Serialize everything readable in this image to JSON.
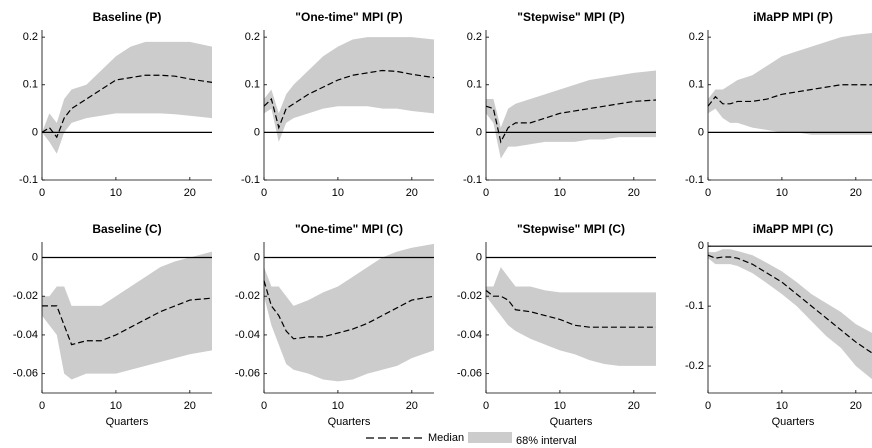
{
  "chart_data": [
    {
      "type": "line",
      "title": "Baseline (P)",
      "x": [
        0,
        1,
        2,
        3,
        4,
        6,
        8,
        10,
        12,
        14,
        16,
        18,
        20,
        23
      ],
      "xlim": [
        0,
        23
      ],
      "xticks": [
        0,
        10,
        20
      ],
      "ylim": [
        -0.1,
        0.215
      ],
      "yticks": [
        -0.1,
        0,
        0.1,
        0.2
      ],
      "hline": 0,
      "series": [
        {
          "color": "#000000",
          "values": [
            0,
            0.01,
            -0.01,
            0.03,
            0.05,
            0.07,
            0.09,
            0.11,
            0.115,
            0.12,
            0.12,
            0.118,
            0.112,
            0.105
          ]
        }
      ],
      "band": {
        "color": "#cccccc",
        "lower": [
          0,
          -0.02,
          -0.045,
          0,
          0.02,
          0.03,
          0.035,
          0.04,
          0.04,
          0.04,
          0.04,
          0.038,
          0.035,
          0.03
        ],
        "upper": [
          0,
          0.04,
          0.02,
          0.07,
          0.09,
          0.1,
          0.13,
          0.16,
          0.18,
          0.19,
          0.19,
          0.19,
          0.19,
          0.18
        ]
      }
    },
    {
      "type": "line",
      "title": "\"One-time\" MPI (P)",
      "x": [
        0,
        1,
        2,
        3,
        4,
        6,
        8,
        10,
        12,
        14,
        16,
        18,
        20,
        23
      ],
      "xlim": [
        0,
        23
      ],
      "xticks": [
        0,
        10,
        20
      ],
      "ylim": [
        -0.1,
        0.215
      ],
      "yticks": [
        -0.1,
        0,
        0.1,
        0.2
      ],
      "hline": 0,
      "series": [
        {
          "color": "#000000",
          "values": [
            0.055,
            0.07,
            0.01,
            0.05,
            0.06,
            0.08,
            0.095,
            0.11,
            0.12,
            0.125,
            0.13,
            0.128,
            0.122,
            0.115
          ]
        }
      ],
      "band": {
        "color": "#cccccc",
        "lower": [
          0.04,
          0.05,
          -0.02,
          0.02,
          0.03,
          0.04,
          0.05,
          0.055,
          0.055,
          0.055,
          0.05,
          0.05,
          0.045,
          0.04
        ],
        "upper": [
          0.07,
          0.09,
          0.04,
          0.08,
          0.1,
          0.13,
          0.16,
          0.18,
          0.195,
          0.2,
          0.2,
          0.2,
          0.2,
          0.195
        ]
      }
    },
    {
      "type": "line",
      "title": "\"Stepwise\" MPI (P)",
      "x": [
        0,
        1,
        2,
        3,
        4,
        6,
        8,
        10,
        12,
        14,
        16,
        18,
        20,
        23
      ],
      "xlim": [
        0,
        23
      ],
      "xticks": [
        0,
        10,
        20
      ],
      "ylim": [
        -0.1,
        0.215
      ],
      "yticks": [
        -0.1,
        0,
        0.1,
        0.2
      ],
      "hline": 0,
      "series": [
        {
          "color": "#000000",
          "values": [
            0.055,
            0.05,
            -0.02,
            0.01,
            0.02,
            0.02,
            0.03,
            0.04,
            0.045,
            0.05,
            0.055,
            0.06,
            0.065,
            0.068
          ]
        }
      ],
      "band": {
        "color": "#cccccc",
        "lower": [
          0.04,
          0.02,
          -0.055,
          -0.03,
          -0.03,
          -0.025,
          -0.02,
          -0.02,
          -0.02,
          -0.015,
          -0.015,
          -0.01,
          -0.01,
          -0.01
        ],
        "upper": [
          0.07,
          0.07,
          0.01,
          0.05,
          0.06,
          0.07,
          0.08,
          0.09,
          0.1,
          0.11,
          0.115,
          0.12,
          0.125,
          0.13
        ]
      }
    },
    {
      "type": "line",
      "title": "iMaPP MPI (P)",
      "x": [
        0,
        1,
        2,
        3,
        4,
        6,
        8,
        10,
        12,
        14,
        16,
        18,
        20,
        23
      ],
      "xlim": [
        0,
        23
      ],
      "xticks": [
        0,
        10,
        20
      ],
      "ylim": [
        -0.1,
        0.215
      ],
      "yticks": [
        -0.1,
        0,
        0.1,
        0.2
      ],
      "hline": 0,
      "series": [
        {
          "color": "#000000",
          "values": [
            0.055,
            0.075,
            0.06,
            0.06,
            0.065,
            0.065,
            0.07,
            0.08,
            0.085,
            0.09,
            0.095,
            0.1,
            0.1,
            0.1
          ]
        }
      ],
      "band": {
        "color": "#cccccc",
        "lower": [
          0.04,
          0.05,
          0.03,
          0.02,
          0.02,
          0.01,
          0.005,
          0,
          0,
          -0.005,
          -0.005,
          -0.005,
          -0.005,
          -0.005
        ],
        "upper": [
          0.07,
          0.09,
          0.09,
          0.1,
          0.11,
          0.12,
          0.14,
          0.16,
          0.17,
          0.18,
          0.19,
          0.2,
          0.205,
          0.21
        ]
      }
    },
    {
      "type": "line",
      "title": "Baseline (C)",
      "xlabel": "Quarters",
      "x": [
        0,
        1,
        2,
        3,
        4,
        6,
        8,
        10,
        12,
        14,
        16,
        18,
        20,
        23
      ],
      "xlim": [
        0,
        23
      ],
      "xticks": [
        0,
        10,
        20
      ],
      "ylim": [
        -0.07,
        0.008
      ],
      "yticks": [
        -0.06,
        -0.04,
        -0.02,
        0
      ],
      "hline": 0,
      "series": [
        {
          "color": "#000000",
          "values": [
            -0.025,
            -0.025,
            -0.025,
            -0.035,
            -0.045,
            -0.043,
            -0.043,
            -0.04,
            -0.036,
            -0.032,
            -0.028,
            -0.025,
            -0.022,
            -0.021
          ]
        }
      ],
      "band": {
        "color": "#cccccc",
        "lower": [
          -0.03,
          -0.035,
          -0.04,
          -0.06,
          -0.063,
          -0.06,
          -0.06,
          -0.06,
          -0.058,
          -0.056,
          -0.054,
          -0.052,
          -0.05,
          -0.048
        ],
        "upper": [
          -0.02,
          -0.02,
          -0.015,
          -0.015,
          -0.025,
          -0.025,
          -0.025,
          -0.02,
          -0.015,
          -0.01,
          -0.005,
          -0.002,
          0,
          0.003
        ]
      }
    },
    {
      "type": "line",
      "title": "\"One-time\" MPI (C)",
      "xlabel": "Quarters",
      "x": [
        0,
        1,
        2,
        3,
        4,
        6,
        8,
        10,
        12,
        14,
        16,
        18,
        20,
        23
      ],
      "xlim": [
        0,
        23
      ],
      "xticks": [
        0,
        10,
        20
      ],
      "ylim": [
        -0.07,
        0.008
      ],
      "yticks": [
        -0.06,
        -0.04,
        -0.02,
        0
      ],
      "hline": 0,
      "series": [
        {
          "color": "#000000",
          "values": [
            -0.012,
            -0.025,
            -0.03,
            -0.038,
            -0.042,
            -0.041,
            -0.041,
            -0.039,
            -0.037,
            -0.034,
            -0.03,
            -0.026,
            -0.022,
            -0.02
          ]
        }
      ],
      "band": {
        "color": "#cccccc",
        "lower": [
          -0.02,
          -0.035,
          -0.045,
          -0.055,
          -0.058,
          -0.06,
          -0.063,
          -0.064,
          -0.063,
          -0.06,
          -0.058,
          -0.056,
          -0.052,
          -0.048
        ],
        "upper": [
          -0.005,
          -0.015,
          -0.015,
          -0.02,
          -0.025,
          -0.022,
          -0.018,
          -0.015,
          -0.01,
          -0.005,
          0,
          0.003,
          0.005,
          0.007
        ]
      }
    },
    {
      "type": "line",
      "title": "\"Stepwise\" MPI (C)",
      "xlabel": "Quarters",
      "x": [
        0,
        1,
        2,
        3,
        4,
        6,
        8,
        10,
        12,
        14,
        16,
        18,
        20,
        23
      ],
      "xlim": [
        0,
        23
      ],
      "xticks": [
        0,
        10,
        20
      ],
      "ylim": [
        -0.07,
        0.008
      ],
      "yticks": [
        -0.06,
        -0.04,
        -0.02,
        0
      ],
      "hline": 0,
      "series": [
        {
          "color": "#000000",
          "values": [
            -0.017,
            -0.02,
            -0.02,
            -0.022,
            -0.027,
            -0.028,
            -0.03,
            -0.032,
            -0.035,
            -0.036,
            -0.036,
            -0.036,
            -0.036,
            -0.036
          ]
        }
      ],
      "band": {
        "color": "#cccccc",
        "lower": [
          -0.02,
          -0.025,
          -0.03,
          -0.035,
          -0.038,
          -0.042,
          -0.045,
          -0.048,
          -0.05,
          -0.053,
          -0.055,
          -0.056,
          -0.056,
          -0.056
        ],
        "upper": [
          -0.015,
          -0.015,
          -0.005,
          -0.01,
          -0.015,
          -0.015,
          -0.017,
          -0.018,
          -0.018,
          -0.018,
          -0.018,
          -0.018,
          -0.018,
          -0.018
        ]
      }
    },
    {
      "type": "line",
      "title": "iMaPP MPI (C)",
      "xlabel": "Quarters",
      "x": [
        0,
        1,
        2,
        3,
        4,
        6,
        8,
        10,
        12,
        14,
        16,
        18,
        20,
        23
      ],
      "xlim": [
        0,
        23
      ],
      "xticks": [
        0,
        10,
        20
      ],
      "ylim": [
        -0.245,
        0.007
      ],
      "yticks": [
        -0.2,
        -0.1,
        0
      ],
      "hline": 0,
      "series": [
        {
          "color": "#000000",
          "values": [
            -0.015,
            -0.02,
            -0.018,
            -0.018,
            -0.02,
            -0.03,
            -0.045,
            -0.06,
            -0.08,
            -0.1,
            -0.12,
            -0.14,
            -0.16,
            -0.185
          ]
        }
      ],
      "band": {
        "color": "#cccccc",
        "lower": [
          -0.02,
          -0.03,
          -0.03,
          -0.03,
          -0.033,
          -0.045,
          -0.062,
          -0.08,
          -0.1,
          -0.125,
          -0.15,
          -0.17,
          -0.2,
          -0.23
        ],
        "upper": [
          -0.01,
          -0.01,
          -0.005,
          -0.005,
          -0.008,
          -0.015,
          -0.028,
          -0.042,
          -0.06,
          -0.08,
          -0.095,
          -0.11,
          -0.13,
          -0.15
        ]
      }
    }
  ],
  "legend": [
    {
      "label": "Median",
      "color": "#000000"
    },
    {
      "label": "68% interval",
      "color": "#cccccc"
    }
  ]
}
